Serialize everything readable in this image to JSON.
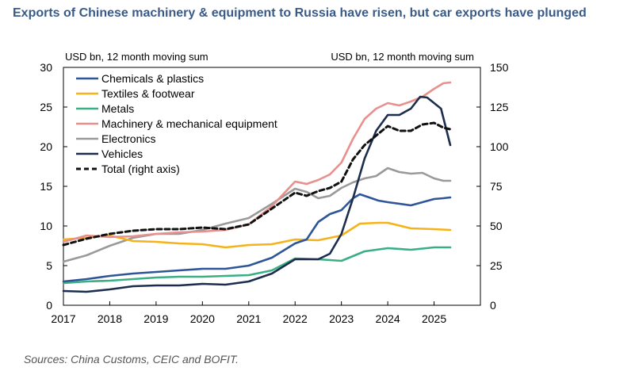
{
  "title": "Exports of Chinese machinery & equipment to Russia have risen, but car exports have plunged",
  "source": "Sources: China Customs, CEIC and BOFIT.",
  "chart_data": {
    "type": "line",
    "left_axis_label": "USD bn, 12 month moving sum",
    "right_axis_label": "USD bn, 12 month moving sum",
    "ylim_left": [
      0,
      30
    ],
    "ylim_right": [
      0,
      150
    ],
    "xlim": [
      2017,
      2026
    ],
    "x_ticks": [
      "2017",
      "2018",
      "2019",
      "2020",
      "2021",
      "2022",
      "2023",
      "2024",
      "2025"
    ],
    "y_ticks_left": [
      "0",
      "5",
      "10",
      "15",
      "20",
      "25",
      "30"
    ],
    "y_ticks_right": [
      "0",
      "25",
      "50",
      "75",
      "100",
      "125",
      "150"
    ],
    "grid": false,
    "legend_position": "top-left",
    "series": [
      {
        "name": "Chemicals & plastics",
        "axis": "left",
        "color": "#2e5597",
        "dash": "solid",
        "x": [
          2017,
          2017.5,
          2018,
          2018.5,
          2019,
          2019.5,
          2020,
          2020.5,
          2021,
          2021.5,
          2022,
          2022.25,
          2022.5,
          2022.75,
          2023,
          2023.25,
          2023.4,
          2023.6,
          2023.8,
          2024,
          2024.5,
          2025,
          2025.2,
          2025.35
        ],
        "y": [
          3.0,
          3.3,
          3.7,
          4.0,
          4.2,
          4.4,
          4.6,
          4.6,
          5.0,
          6.0,
          7.8,
          8.3,
          10.5,
          11.5,
          12.0,
          13.5,
          14.0,
          13.6,
          13.2,
          13.0,
          12.6,
          13.4,
          13.5,
          13.6
        ]
      },
      {
        "name": "Textiles & footwear",
        "axis": "left",
        "color": "#f5b21a",
        "dash": "solid",
        "x": [
          2017,
          2017.5,
          2018,
          2018.5,
          2019,
          2019.5,
          2020,
          2020.5,
          2021,
          2021.5,
          2022,
          2022.5,
          2023,
          2023.4,
          2023.8,
          2024,
          2024.5,
          2025,
          2025.35
        ],
        "y": [
          8.3,
          8.5,
          8.8,
          8.1,
          8.0,
          7.8,
          7.7,
          7.3,
          7.6,
          7.7,
          8.3,
          8.2,
          8.8,
          10.3,
          10.4,
          10.4,
          9.7,
          9.6,
          9.5
        ]
      },
      {
        "name": "Metals",
        "axis": "left",
        "color": "#3aaf84",
        "dash": "solid",
        "x": [
          2017,
          2017.5,
          2018,
          2018.5,
          2019,
          2019.5,
          2020,
          2020.5,
          2021,
          2021.5,
          2022,
          2022.5,
          2023,
          2023.5,
          2024,
          2024.5,
          2025,
          2025.35
        ],
        "y": [
          2.8,
          3.0,
          3.1,
          3.3,
          3.5,
          3.6,
          3.6,
          3.7,
          3.8,
          4.4,
          5.9,
          5.8,
          5.6,
          6.8,
          7.2,
          7.0,
          7.3,
          7.3
        ]
      },
      {
        "name": "Machinery & mechanical equipment",
        "axis": "left",
        "color": "#e8908e",
        "dash": "solid",
        "x": [
          2017,
          2017.5,
          2018,
          2018.5,
          2019,
          2019.5,
          2020,
          2020.5,
          2021,
          2021.5,
          2022,
          2022.25,
          2022.5,
          2022.75,
          2023,
          2023.25,
          2023.5,
          2023.75,
          2024,
          2024.25,
          2024.5,
          2024.75,
          2025,
          2025.2,
          2025.35
        ],
        "y": [
          8.0,
          8.8,
          8.6,
          8.7,
          9.0,
          9.2,
          9.3,
          9.5,
          10.2,
          12.5,
          15.6,
          15.3,
          15.8,
          16.5,
          18.0,
          21.0,
          23.5,
          24.8,
          25.5,
          25.2,
          25.7,
          26.3,
          27.3,
          28.0,
          28.1
        ]
      },
      {
        "name": "Electronics",
        "axis": "left",
        "color": "#9a9a9a",
        "dash": "solid",
        "x": [
          2017,
          2017.5,
          2018,
          2018.5,
          2019,
          2019.5,
          2020,
          2020.5,
          2021,
          2021.5,
          2022,
          2022.25,
          2022.5,
          2022.75,
          2023,
          2023.25,
          2023.5,
          2023.75,
          2024,
          2024.25,
          2024.5,
          2024.75,
          2025,
          2025.2,
          2025.35
        ],
        "y": [
          5.5,
          6.3,
          7.5,
          8.5,
          9.0,
          9.0,
          9.5,
          10.3,
          11.0,
          12.8,
          14.7,
          14.3,
          13.5,
          13.8,
          14.8,
          15.5,
          16.0,
          16.3,
          17.3,
          16.8,
          16.6,
          16.7,
          16.0,
          15.7,
          15.7
        ]
      },
      {
        "name": "Vehicles",
        "axis": "left",
        "color": "#1c2d4d",
        "dash": "solid",
        "x": [
          2017,
          2017.5,
          2018,
          2018.5,
          2019,
          2019.5,
          2020,
          2020.5,
          2021,
          2021.5,
          2022,
          2022.5,
          2022.75,
          2023,
          2023.25,
          2023.5,
          2023.75,
          2024,
          2024.25,
          2024.5,
          2024.7,
          2024.85,
          2025,
          2025.15,
          2025.35
        ],
        "y": [
          1.8,
          1.7,
          2.0,
          2.4,
          2.5,
          2.5,
          2.7,
          2.6,
          3.0,
          4.0,
          5.8,
          5.8,
          6.5,
          9.0,
          13.5,
          18.5,
          22.0,
          24.0,
          24.0,
          24.8,
          26.3,
          26.2,
          25.5,
          24.8,
          20.2
        ]
      },
      {
        "name": "Total (right axis)",
        "axis": "right",
        "color": "#111111",
        "dash": "dashed",
        "x": [
          2017,
          2017.5,
          2018,
          2018.5,
          2019,
          2019.5,
          2020,
          2020.5,
          2021,
          2021.5,
          2022,
          2022.25,
          2022.5,
          2022.75,
          2023,
          2023.25,
          2023.5,
          2023.75,
          2024,
          2024.25,
          2024.5,
          2024.75,
          2025,
          2025.2,
          2025.35
        ],
        "y": [
          38,
          42,
          45,
          47,
          48,
          48,
          49,
          48,
          51,
          61,
          71,
          69,
          72,
          74,
          78,
          92,
          101,
          107,
          113,
          110,
          110,
          114,
          115,
          112,
          111
        ]
      }
    ]
  }
}
